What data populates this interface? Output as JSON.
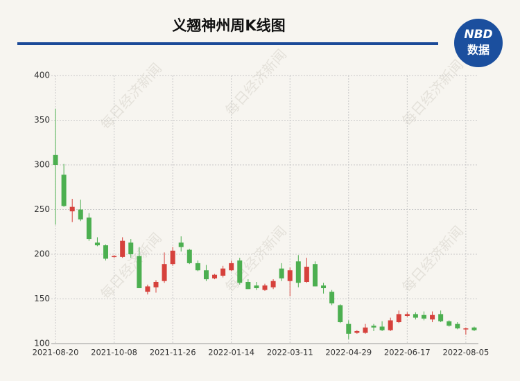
{
  "chart_data": {
    "type": "candlestick",
    "title": "义翘神州周K线图",
    "logo": {
      "line1": "NBD",
      "line2": "数据"
    },
    "watermark": "每日经济新闻",
    "up_color": "#d6413c",
    "down_color": "#4caf50",
    "categories": [
      "2021-08-20",
      null,
      null,
      null,
      null,
      null,
      null,
      "2021-10-08",
      null,
      null,
      null,
      null,
      null,
      null,
      "2021-11-26",
      null,
      null,
      null,
      null,
      null,
      null,
      "2022-01-14",
      null,
      null,
      null,
      null,
      null,
      null,
      "2022-03-11",
      null,
      null,
      null,
      null,
      null,
      null,
      "2022-04-29",
      null,
      null,
      null,
      null,
      null,
      null,
      "2022-06-17",
      null,
      null,
      null,
      null,
      null,
      null,
      "2022-08-05",
      null
    ],
    "open": [
      311,
      289,
      248,
      250,
      241,
      213,
      210,
      197,
      197,
      213,
      198,
      158,
      163,
      170,
      189,
      213,
      205,
      190,
      182,
      173,
      176,
      182,
      193,
      169,
      165,
      160,
      163,
      184,
      170,
      192,
      169,
      189,
      165,
      158,
      143,
      122,
      112,
      112,
      120,
      119,
      115,
      124,
      131,
      133,
      132,
      127,
      133,
      125,
      122,
      116,
      118
    ],
    "high": [
      363,
      301,
      262,
      261,
      246,
      219,
      211,
      199,
      219,
      217,
      208,
      166,
      171,
      202,
      208,
      220,
      206,
      193,
      188,
      178,
      187,
      193,
      196,
      172,
      169,
      167,
      172,
      190,
      185,
      199,
      196,
      192,
      168,
      160,
      144,
      126,
      115,
      122,
      122,
      125,
      129,
      137,
      135,
      135,
      136,
      136,
      137,
      126,
      124,
      118,
      119
    ],
    "low": [
      233,
      253,
      236,
      237,
      215,
      209,
      193,
      196,
      196,
      196,
      162,
      155,
      157,
      168,
      187,
      203,
      189,
      181,
      170,
      172,
      174,
      181,
      166,
      161,
      160,
      159,
      161,
      170,
      153,
      163,
      168,
      164,
      156,
      143,
      123,
      105,
      111,
      111,
      114,
      114,
      114,
      123,
      130,
      127,
      126,
      124,
      124,
      119,
      116,
      110,
      114
    ],
    "close": [
      300,
      254,
      253,
      239,
      217,
      210,
      195,
      198,
      215,
      200,
      162,
      164,
      169,
      189,
      204,
      208,
      190,
      182,
      172,
      177,
      184,
      190,
      168,
      161,
      162,
      165,
      170,
      173,
      182,
      168,
      186,
      164,
      162,
      145,
      124,
      111,
      114,
      118,
      118,
      115,
      126,
      133,
      133,
      129,
      128,
      132,
      125,
      120,
      117,
      117,
      115
    ],
    "ylim": [
      100,
      400
    ],
    "yticks": [
      100,
      150,
      200,
      250,
      300,
      350,
      400
    ],
    "grid": true
  }
}
